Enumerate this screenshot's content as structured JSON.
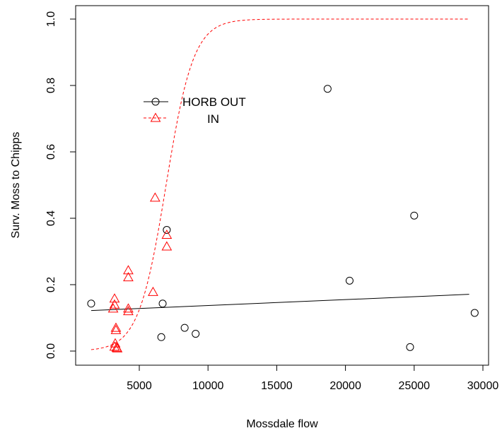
{
  "chart_data": {
    "type": "scatter",
    "title": "",
    "xlabel": "Mossdale flow",
    "ylabel": "Surv. Moss to Chipps",
    "xlim": [
      300,
      30000
    ],
    "ylim": [
      -0.05,
      1.05
    ],
    "xticks": [
      5000,
      10000,
      15000,
      20000,
      25000,
      30000
    ],
    "xtick_labels": [
      "5000",
      "10000",
      "15000",
      "20000",
      "25000",
      "30000"
    ],
    "yticks": [
      0.0,
      0.2,
      0.4,
      0.6,
      0.8,
      1.0
    ],
    "ytick_labels": [
      "0.0",
      "0.2",
      "0.4",
      "0.6",
      "0.8",
      "1.0"
    ],
    "grid": false,
    "legend_position": "upper-left",
    "series": [
      {
        "name": "HORB OUT",
        "marker": "circle",
        "color": "#000000",
        "points": [
          {
            "x": 1500,
            "y": 0.143
          },
          {
            "x": 6700,
            "y": 0.143
          },
          {
            "x": 6600,
            "y": 0.042
          },
          {
            "x": 7000,
            "y": 0.365
          },
          {
            "x": 8300,
            "y": 0.07
          },
          {
            "x": 9100,
            "y": 0.052
          },
          {
            "x": 18700,
            "y": 0.79
          },
          {
            "x": 20300,
            "y": 0.212
          },
          {
            "x": 24700,
            "y": 0.012
          },
          {
            "x": 25000,
            "y": 0.408
          },
          {
            "x": 29400,
            "y": 0.115
          }
        ],
        "fit": {
          "type": "linear",
          "from": [
            1500,
            0.122
          ],
          "to": [
            29000,
            0.171
          ]
        }
      },
      {
        "name": "IN",
        "marker": "triangle",
        "color": "#ff0000",
        "points": [
          {
            "x": 3200,
            "y": 0.158
          },
          {
            "x": 3200,
            "y": 0.14
          },
          {
            "x": 3100,
            "y": 0.128
          },
          {
            "x": 3300,
            "y": 0.07
          },
          {
            "x": 3300,
            "y": 0.063
          },
          {
            "x": 3250,
            "y": 0.023
          },
          {
            "x": 3200,
            "y": 0.013
          },
          {
            "x": 3350,
            "y": 0.01
          },
          {
            "x": 3400,
            "y": 0.008
          },
          {
            "x": 4200,
            "y": 0.243
          },
          {
            "x": 4200,
            "y": 0.222
          },
          {
            "x": 4200,
            "y": 0.128
          },
          {
            "x": 4200,
            "y": 0.12
          },
          {
            "x": 6000,
            "y": 0.178
          },
          {
            "x": 6150,
            "y": 0.462
          },
          {
            "x": 7000,
            "y": 0.35
          },
          {
            "x": 7000,
            "y": 0.315
          }
        ],
        "fit": {
          "type": "logistic",
          "x_start": 1500,
          "x_end": 29000,
          "midpoint": 6950,
          "scale": 1000
        }
      }
    ]
  }
}
